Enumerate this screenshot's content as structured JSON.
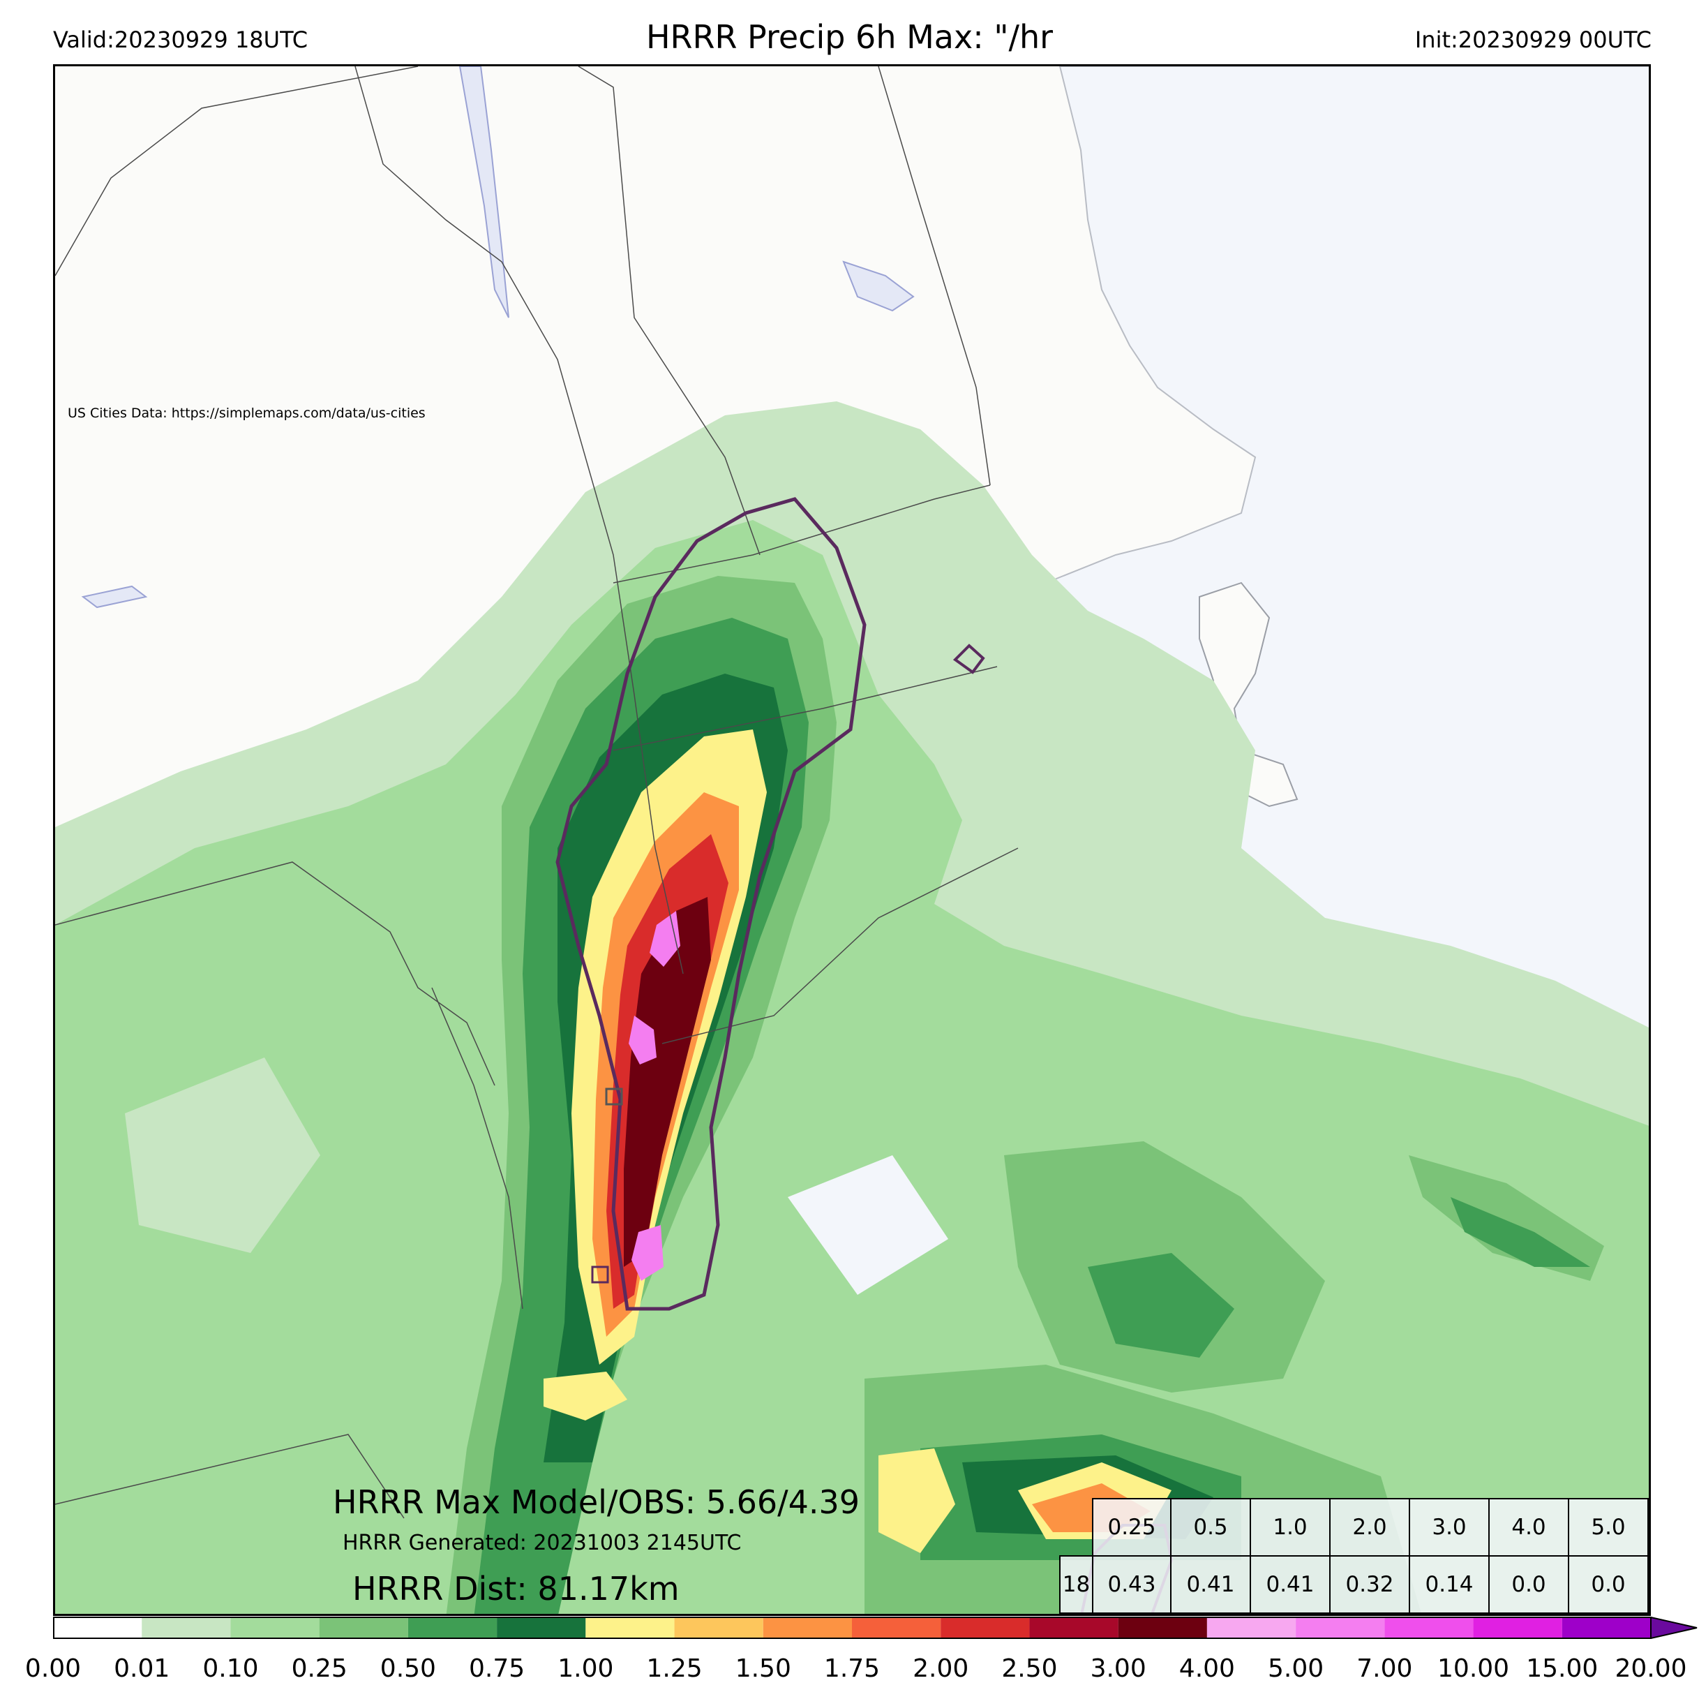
{
  "header": {
    "valid": "Valid:20230929 18UTC",
    "title": "HRRR Precip 6h Max: \"/hr",
    "init": "Init:20230929 00UTC"
  },
  "credit": "US Cities Data: https://simplemaps.com/data/us-cities",
  "overlay": {
    "max_line": "HRRR Max Model/OBS: 5.66/4.39",
    "generated_line": "HRRR Generated: 20231003 2145UTC",
    "dist_line": "HRRR Dist: 81.17km"
  },
  "stats_table": {
    "thresholds": [
      "0.25",
      "0.5",
      "1.0",
      "2.0",
      "3.0",
      "4.0",
      "5.0"
    ],
    "row_label": "18",
    "values": [
      "0.43",
      "0.41",
      "0.41",
      "0.32",
      "0.14",
      "0.0",
      "0.0"
    ]
  },
  "colorbar": {
    "ticks": [
      "0.00",
      "0.01",
      "0.10",
      "0.25",
      "0.50",
      "0.75",
      "1.00",
      "1.25",
      "1.50",
      "1.75",
      "2.00",
      "2.50",
      "3.00",
      "4.00",
      "5.00",
      "7.00",
      "10.00",
      "15.00",
      "20.00"
    ],
    "colors": [
      "#ffffff",
      "#c8e6c3",
      "#a3dc9c",
      "#7bc378",
      "#3f9e54",
      "#17733c",
      "#fdf28a",
      "#fdc65c",
      "#fc9343",
      "#f5603a",
      "#d92c2b",
      "#a8082a",
      "#6d0010",
      "#f7a8f0",
      "#f47ef0",
      "#ef4fec",
      "#e020e2",
      "#9e00c9"
    ],
    "extend_color": "#6a0a9e"
  },
  "colors": {
    "ocean": "#f3f6fb",
    "land": "#fbfbf9",
    "obs_contour": "#5a2a5e"
  }
}
